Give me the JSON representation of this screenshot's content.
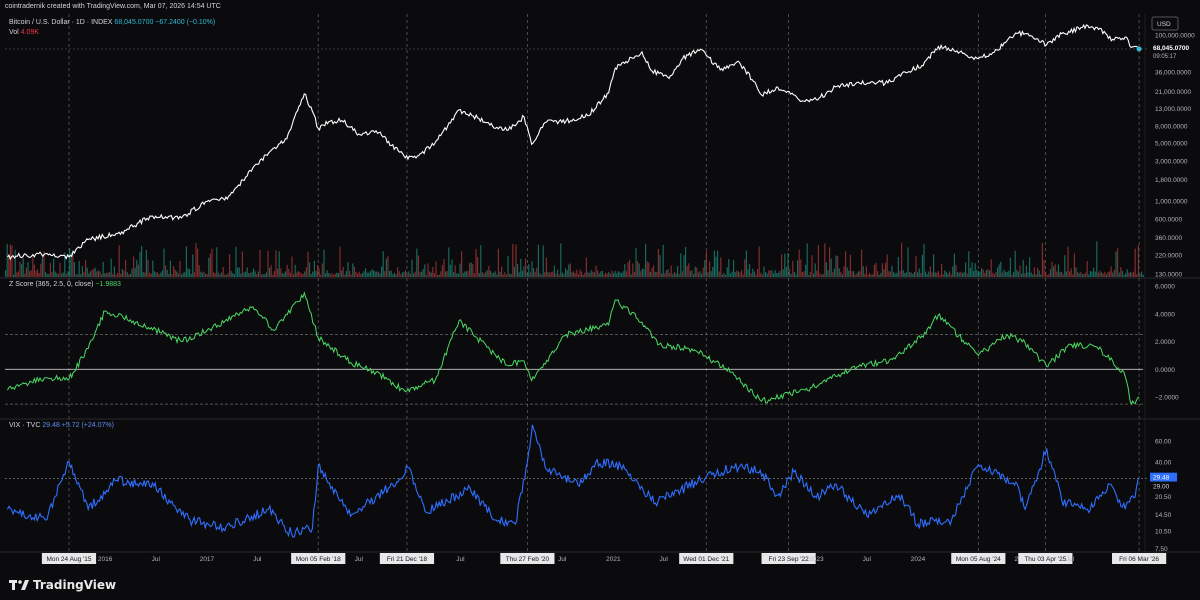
{
  "header": {
    "attribution": "cointradernik created with TradingView.com, Mar 07, 2026 14:54 UTC"
  },
  "currency": "USD",
  "legends": {
    "price": {
      "name": "Bitcoin / U.S. Dollar · 1D · INDEX",
      "values": "68,045.0700  −67.2400 (−0.10%)"
    },
    "vol": {
      "name": "Vol",
      "value": "4.09K"
    },
    "zscore": {
      "name": "Z Score (365, 2.5, 0, close)",
      "value": "−1.9883"
    },
    "vix": {
      "name": "VIX · TVC",
      "values": "29.48  +5.72 (+24.07%)"
    }
  },
  "tags": {
    "price_value": "68,045.0700",
    "price_countdown": "09:05:17",
    "vix_value": "29.48",
    "vix_level": "29.00"
  },
  "brand": {
    "name": "TradingView",
    "logo_icon": "tradingview-logo-icon"
  },
  "colors": {
    "background": "#0b0b0e",
    "price_line": "#ffffff",
    "zscore_line": "#4cd964",
    "vix_line": "#2f6fff",
    "vol_up": "#1e8577",
    "vol_down": "#a83a3a",
    "grid_dashed": "#5a5a5a"
  },
  "chart_data": [
    {
      "type": "line",
      "title": "Bitcoin / U.S. Dollar · 1D · INDEX",
      "scale": "log",
      "x": [
        "2015-01-15",
        "2015-06-01",
        "2015-08-24",
        "2015-11-01",
        "2016-03-01",
        "2016-06-15",
        "2016-10-01",
        "2017-01-01",
        "2017-03-15",
        "2017-06-15",
        "2017-09-01",
        "2017-10-15",
        "2017-12-17",
        "2018-01-15",
        "2018-02-05",
        "2018-03-15",
        "2018-05-01",
        "2018-07-01",
        "2018-09-01",
        "2018-11-20",
        "2018-12-15",
        "2019-02-01",
        "2019-04-01",
        "2019-06-26",
        "2019-09-01",
        "2019-10-15",
        "2019-12-15",
        "2020-02-15",
        "2020-03-13",
        "2020-05-01",
        "2020-07-15",
        "2020-10-01",
        "2020-12-15",
        "2021-01-08",
        "2021-02-15",
        "2021-04-14",
        "2021-05-20",
        "2021-07-20",
        "2021-09-07",
        "2021-11-10",
        "2021-12-01",
        "2022-01-20",
        "2022-03-30",
        "2022-05-15",
        "2022-06-18",
        "2022-08-15",
        "2022-11-21",
        "2023-01-01",
        "2023-03-15",
        "2023-06-01",
        "2023-09-15",
        "2023-11-15",
        "2024-01-15",
        "2024-03-14",
        "2024-05-15",
        "2024-08-05",
        "2024-10-01",
        "2024-12-17",
        "2025-01-20",
        "2025-04-07",
        "2025-06-01",
        "2025-08-14",
        "2025-10-06",
        "2025-12-01",
        "2026-01-15",
        "2026-02-06",
        "2026-03-06"
      ],
      "y": [
        210,
        230,
        210,
        340,
        420,
        650,
        620,
        980,
        1050,
        2500,
        4400,
        5600,
        19500,
        12000,
        7500,
        9000,
        9300,
        6400,
        7000,
        4000,
        3300,
        3500,
        5000,
        12500,
        10000,
        8200,
        7100,
        10300,
        4800,
        8800,
        9200,
        10600,
        20000,
        40000,
        48000,
        63000,
        37000,
        30000,
        52000,
        67500,
        57000,
        38000,
        47000,
        29000,
        18900,
        23500,
        15800,
        16600,
        24000,
        27000,
        26500,
        36000,
        43000,
        73000,
        63000,
        52000,
        62000,
        106000,
        104000,
        76000,
        104000,
        124000,
        124000,
        89000,
        95000,
        71000,
        68045
      ],
      "ylim": [
        120,
        180000
      ],
      "yticks": [
        "100,000.0000",
        "60,000.0000",
        "36,000.0000",
        "21,000.0000",
        "13,000.0000",
        "8,000.0000",
        "5,000.0000",
        "3,000.0000",
        "1,800.0000",
        "1,000.0000",
        "600.0000",
        "360.0000",
        "220.0000",
        "130.0000"
      ],
      "ytick_values": [
        100000,
        60000,
        36000,
        21000,
        13000,
        8000,
        5000,
        3000,
        1800,
        1000,
        600,
        360,
        220,
        130
      ],
      "last_value": 68045.07
    },
    {
      "type": "line",
      "title": "Z Score (365, 2.5, 0, close)",
      "x": [
        "2015-01-15",
        "2015-06-01",
        "2015-08-24",
        "2015-11-01",
        "2016-01-01",
        "2016-06-15",
        "2016-10-01",
        "2017-01-01",
        "2017-06-15",
        "2017-09-01",
        "2017-12-17",
        "2018-02-05",
        "2018-06-01",
        "2018-09-01",
        "2018-12-15",
        "2019-02-01",
        "2019-04-01",
        "2019-06-26",
        "2019-10-15",
        "2019-12-15",
        "2020-02-15",
        "2020-03-13",
        "2020-07-15",
        "2020-12-15",
        "2021-01-08",
        "2021-04-14",
        "2021-06-15",
        "2021-10-20",
        "2021-12-01",
        "2022-03-01",
        "2022-06-18",
        "2022-11-21",
        "2023-01-15",
        "2023-06-01",
        "2023-10-01",
        "2024-01-15",
        "2024-03-14",
        "2024-08-05",
        "2024-11-15",
        "2025-01-20",
        "2025-04-07",
        "2025-07-01",
        "2025-10-06",
        "2025-12-01",
        "2026-01-15",
        "2026-02-06",
        "2026-03-06"
      ],
      "y": [
        -1.5,
        -0.6,
        -0.7,
        1.5,
        4.2,
        3.0,
        2.0,
        2.8,
        4.5,
        2.8,
        5.5,
        2.3,
        0.5,
        -0.2,
        -1.6,
        -1.2,
        -0.8,
        3.5,
        1.4,
        0.3,
        0.6,
        -0.8,
        2.5,
        3.2,
        5.0,
        3.4,
        1.8,
        1.4,
        0.9,
        -0.2,
        -2.3,
        -1.5,
        -1.0,
        0.2,
        0.7,
        2.4,
        3.9,
        1.0,
        2.5,
        1.9,
        0.2,
        1.8,
        1.6,
        0.6,
        -0.5,
        -2.5,
        -1.9883
      ],
      "ylim": [
        -3.5,
        6.5
      ],
      "yticks": [
        "6.0000",
        "4.0000",
        "2.0000",
        "0.0000",
        "−2.0000"
      ],
      "ytick_values": [
        6,
        4,
        2,
        0,
        -2
      ],
      "bands": [
        -2.5,
        0,
        2.5
      ],
      "last_value": -1.9883
    },
    {
      "type": "line",
      "title": "VIX · TVC",
      "scale": "log",
      "x": [
        "2015-01-15",
        "2015-06-01",
        "2015-08-24",
        "2015-11-01",
        "2016-02-11",
        "2016-06-24",
        "2016-11-01",
        "2017-03-01",
        "2017-08-10",
        "2017-11-01",
        "2018-01-15",
        "2018-02-05",
        "2018-06-01",
        "2018-10-15",
        "2018-12-24",
        "2019-03-01",
        "2019-08-05",
        "2019-11-01",
        "2020-01-15",
        "2020-02-27",
        "2020-03-16",
        "2020-05-01",
        "2020-09-01",
        "2020-10-30",
        "2021-01-27",
        "2021-06-01",
        "2021-12-01",
        "2022-03-07",
        "2022-06-13",
        "2022-08-15",
        "2022-10-12",
        "2023-01-01",
        "2023-03-13",
        "2023-07-01",
        "2023-10-25",
        "2024-01-01",
        "2024-05-01",
        "2024-08-05",
        "2024-12-18",
        "2025-01-20",
        "2025-04-08",
        "2025-06-01",
        "2025-09-01",
        "2025-11-20",
        "2026-01-15",
        "2026-02-15",
        "2026-03-06"
      ],
      "y": [
        16,
        13,
        40,
        16,
        28,
        25,
        13,
        11,
        16,
        10,
        11,
        37,
        14,
        24,
        36,
        15,
        24,
        13,
        12,
        40,
        82,
        36,
        25,
        40,
        37,
        18,
        30,
        36,
        34,
        21,
        33,
        20,
        26,
        14,
        21,
        12,
        13,
        38,
        27,
        16,
        52,
        19,
        16,
        26,
        16,
        20,
        29.48
      ],
      "ylim": [
        7,
        90
      ],
      "yticks": [
        "60.00",
        "40.00",
        "29.00",
        "20.50",
        "14.50",
        "10.50",
        "7.50"
      ],
      "ytick_values": [
        60,
        40,
        29,
        20.5,
        14.5,
        10.5,
        7.5
      ],
      "reference_level": 29.0,
      "last_value": 29.48
    },
    {
      "type": "bar",
      "title": "Vol",
      "last_value": "4.09K"
    }
  ],
  "time_axis": {
    "labels": [
      {
        "text": "Mon 24 Aug '15",
        "date": "2015-08-24",
        "highlight": true
      },
      {
        "text": "2016",
        "date": "2016-01-01"
      },
      {
        "text": "Jul",
        "date": "2016-07-01"
      },
      {
        "text": "2017",
        "date": "2017-01-01"
      },
      {
        "text": "Jul",
        "date": "2017-07-01"
      },
      {
        "text": "Mon 05 Feb '18",
        "date": "2018-02-05",
        "highlight": true
      },
      {
        "text": "Jul",
        "date": "2018-07-01"
      },
      {
        "text": "Fri 21 Dec '18",
        "date": "2018-12-21",
        "highlight": true
      },
      {
        "text": "Jul",
        "date": "2019-07-01"
      },
      {
        "text": "Thu 27 Feb '20",
        "date": "2020-02-27",
        "highlight": true
      },
      {
        "text": "Jul",
        "date": "2020-07-01"
      },
      {
        "text": "2021",
        "date": "2021-01-01"
      },
      {
        "text": "Jul",
        "date": "2021-07-01"
      },
      {
        "text": "Wed 01 Dec '21",
        "date": "2021-12-01",
        "highlight": true
      },
      {
        "text": "Ju",
        "date": "2022-07-01"
      },
      {
        "text": "Fri 23 Sep '22",
        "date": "2022-09-23",
        "highlight": true
      },
      {
        "text": "2023",
        "date": "2023-01-01"
      },
      {
        "text": "Jul",
        "date": "2023-07-01"
      },
      {
        "text": "2024",
        "date": "2024-01-01"
      },
      {
        "text": "Mon 05 Aug '24",
        "date": "2024-08-05",
        "highlight": true
      },
      {
        "text": "202",
        "date": "2025-01-01"
      },
      {
        "text": "Thu 03 Apr '25",
        "date": "2025-04-03",
        "highlight": true
      },
      {
        "text": "Jul",
        "date": "2025-07-01"
      },
      {
        "text": "Fri 06 Mar '26",
        "date": "2026-03-06",
        "highlight": true
      }
    ],
    "dashed_lines": [
      "2015-08-24",
      "2018-02-05",
      "2018-12-21",
      "2020-02-27",
      "2021-12-01",
      "2022-09-23",
      "2024-08-05",
      "2025-04-03",
      "2026-03-06"
    ]
  }
}
